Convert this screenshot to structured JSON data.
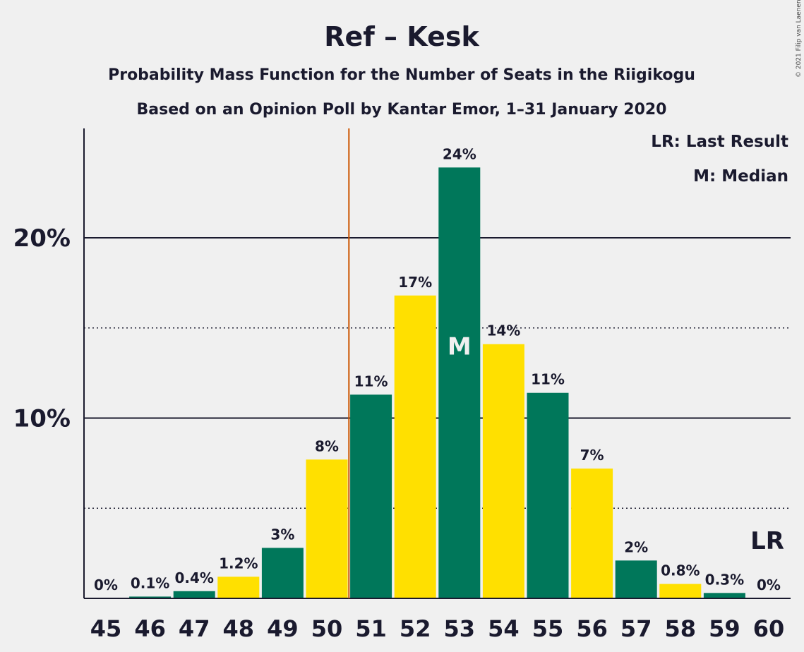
{
  "title": "Ref – Kesk",
  "subtitle1": "Probability Mass Function for the Number of Seats in the Riigikogu",
  "subtitle2": "Based on an Opinion Poll by Kantar Emor, 1–31 January 2020",
  "legend": {
    "lr": "LR: Last Result",
    "median": "M: Median"
  },
  "copyright": "© 2021 Filip van Laenen",
  "colors": {
    "green": "#00775a",
    "yellow": "#ffe000",
    "threshold": "#cc5500",
    "background": "#f0f0f0",
    "text": "#1a1a2e"
  },
  "chart_data": {
    "type": "bar",
    "categories": [
      "45",
      "46",
      "47",
      "48",
      "49",
      "50",
      "51",
      "52",
      "53",
      "54",
      "55",
      "56",
      "57",
      "58",
      "59",
      "60"
    ],
    "values": [
      0,
      0.1,
      0.4,
      1.2,
      2.8,
      7.7,
      11.3,
      16.8,
      23.9,
      14.1,
      11.4,
      7.2,
      2.1,
      0.8,
      0.3,
      0
    ],
    "labels": [
      "0%",
      "0.1%",
      "0.4%",
      "1.2%",
      "3%",
      "8%",
      "11%",
      "17%",
      "24%",
      "14%",
      "11%",
      "7%",
      "2%",
      "0.8%",
      "0.3%",
      "0%"
    ],
    "bar_colors": [
      "green",
      "green",
      "green",
      "yellow",
      "green",
      "yellow",
      "green",
      "yellow",
      "green",
      "yellow",
      "green",
      "yellow",
      "green",
      "yellow",
      "green",
      "yellow"
    ],
    "yticks": [
      "10%",
      "20%"
    ],
    "ytick_values": [
      10,
      20
    ],
    "ylim": [
      0,
      26
    ],
    "minor_gridlines": [
      5,
      15
    ],
    "threshold_line_between": [
      "50",
      "51"
    ],
    "median_category": "53",
    "median_label": "M",
    "last_result_category": "60",
    "last_result_label": "LR",
    "xlabel": "",
    "ylabel": ""
  }
}
